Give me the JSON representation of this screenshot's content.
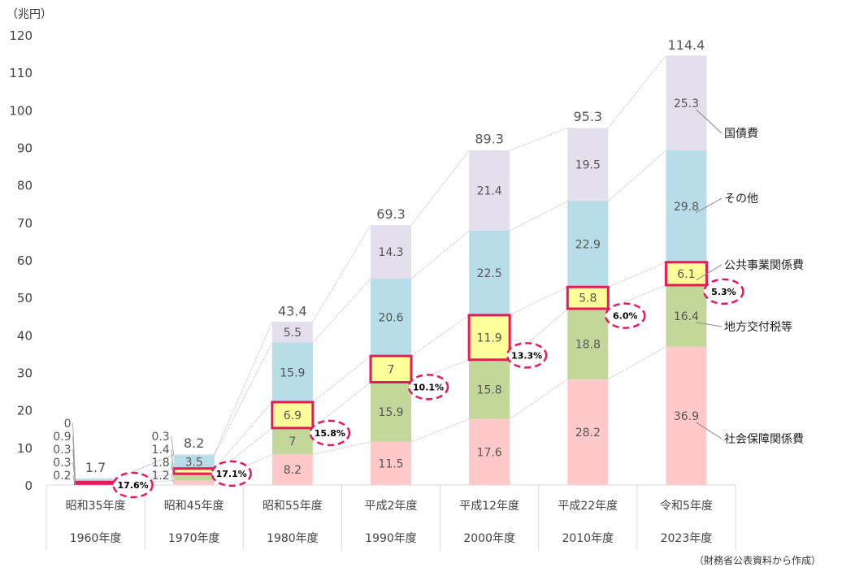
{
  "chart_data": {
    "type": "bar",
    "stacked": true,
    "unit_label": "（兆円）",
    "source": "（財務省公表資料から作成）",
    "ylim": [
      0,
      120
    ],
    "yticks": [
      0,
      10,
      20,
      30,
      40,
      50,
      60,
      70,
      80,
      90,
      100,
      110,
      120
    ],
    "categories": [
      {
        "era": "昭和35年度",
        "year": "1960年度"
      },
      {
        "era": "昭和45年度",
        "year": "1970年度"
      },
      {
        "era": "昭和55年度",
        "year": "1980年度"
      },
      {
        "era": "平成2年度",
        "year": "1990年度"
      },
      {
        "era": "平成12年度",
        "year": "2000年度"
      },
      {
        "era": "平成22年度",
        "year": "2010年度"
      },
      {
        "era": "令和5年度",
        "year": "2023年度"
      }
    ],
    "series": [
      {
        "name": "社会保障関係費",
        "color": "#ffc9c9",
        "values": [
          0.2,
          1.2,
          8.2,
          11.5,
          17.6,
          28.2,
          36.9
        ]
      },
      {
        "name": "地方交付税等",
        "color": "#c4d79b",
        "values": [
          0.3,
          1.8,
          7,
          15.9,
          15.8,
          18.8,
          16.4
        ]
      },
      {
        "name": "公共事業関係費",
        "color": "#ffff99",
        "values": [
          0.3,
          1.4,
          6.9,
          7,
          11.9,
          5.8,
          6.1
        ],
        "highlight": true
      },
      {
        "name": "その他",
        "color": "#b7dde8",
        "values": [
          0.9,
          3.5,
          15.9,
          20.6,
          22.5,
          22.9,
          29.8
        ]
      },
      {
        "name": "国債費",
        "color": "#e4dfec",
        "values": [
          0.0,
          0.3,
          5.5,
          14.3,
          21.4,
          19.5,
          25.3
        ]
      }
    ],
    "totals": [
      1.7,
      8.2,
      43.4,
      69.3,
      89.3,
      95.3,
      114.4
    ],
    "public_works_share": [
      "17.6%",
      "17.1%",
      "15.8%",
      "10.1%",
      "13.3%",
      "6.0%",
      "5.3%"
    ],
    "highlight_color": "#e6195a"
  }
}
